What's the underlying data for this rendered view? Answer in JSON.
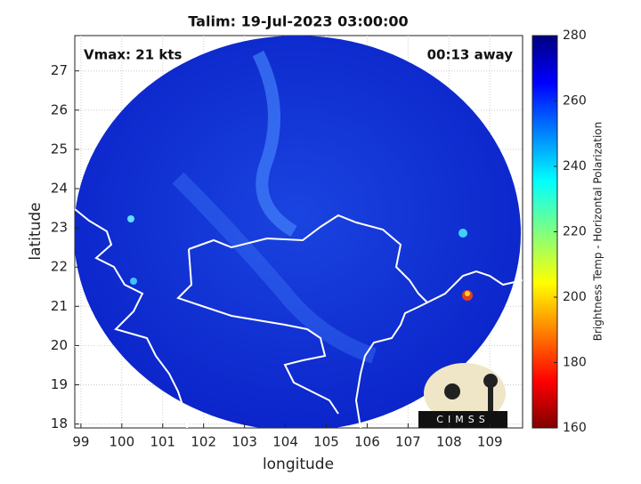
{
  "chart_data": {
    "type": "map",
    "title": "Talim: 19-Jul-2023 03:00:00",
    "annotations": [
      "Vmax: 21 kts",
      "00:13 away"
    ],
    "x_label": "longitude",
    "y_label": "latitude",
    "xlim": [
      98.85,
      109.8
    ],
    "ylim": [
      17.9,
      27.9
    ],
    "xticks": [
      99,
      100,
      101,
      102,
      103,
      104,
      105,
      106,
      107,
      108,
      109
    ],
    "yticks": [
      18,
      19,
      20,
      21,
      22,
      23,
      24,
      25,
      26,
      27
    ],
    "grid": true,
    "colorbar": {
      "label": "Brightness Temp - Horizontal Polarization",
      "colormap": "jet",
      "lim": [
        160,
        280
      ],
      "ticks": [
        160,
        180,
        200,
        220,
        240,
        260,
        280
      ]
    },
    "logo_text": "CIMSS"
  }
}
